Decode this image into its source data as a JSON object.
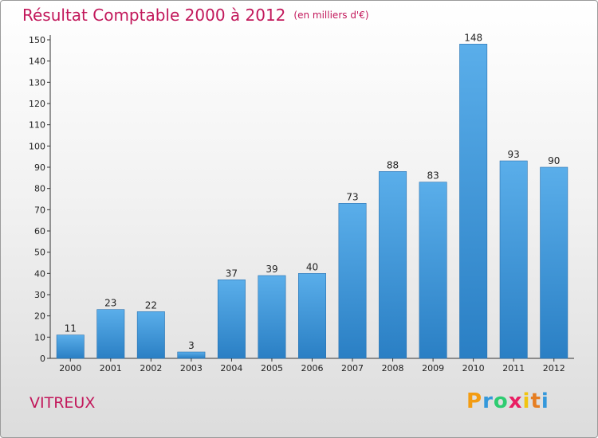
{
  "chart_data": {
    "type": "bar",
    "title": "Résultat Comptable 2000 à 2012",
    "subtitle": "(en milliers d'€)",
    "categories": [
      "2000",
      "2001",
      "2002",
      "2003",
      "2004",
      "2005",
      "2006",
      "2007",
      "2008",
      "2009",
      "2010",
      "2011",
      "2012"
    ],
    "values": [
      11,
      23,
      22,
      3,
      37,
      39,
      40,
      73,
      88,
      83,
      148,
      93,
      90
    ],
    "ylim": [
      0,
      150
    ],
    "yticks": [
      0,
      10,
      20,
      30,
      40,
      50,
      60,
      70,
      80,
      90,
      100,
      110,
      120,
      130,
      140,
      150
    ],
    "xlabel": "",
    "ylabel": "",
    "grid": false,
    "bar_color": "#3f95d8"
  },
  "commune": "VITREUX",
  "brand": {
    "letters": [
      "P",
      "r",
      "o",
      "x",
      "i",
      "t",
      "i"
    ],
    "colors": [
      "#f39c12",
      "#3498db",
      "#2ecc71",
      "#e91e63",
      "#f1c40f",
      "#e67e22",
      "#3498db"
    ]
  }
}
